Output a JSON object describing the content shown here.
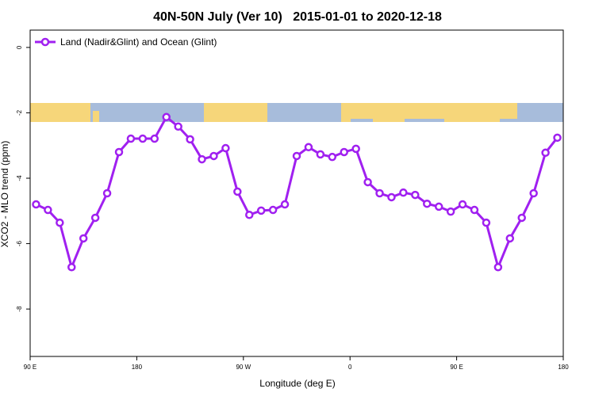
{
  "chart_data": {
    "type": "line",
    "title": "40N-50N July (Ver 10)   2015-01-01 to 2020-12-18",
    "x_label": "Longitude (deg E)",
    "y_label": "XCO2 - MLO trend (ppm)",
    "x": [
      95,
      105,
      115,
      125,
      135,
      145,
      155,
      165,
      175,
      185,
      195,
      205,
      215,
      225,
      235,
      245,
      255,
      265,
      275,
      285,
      295,
      305,
      315,
      325,
      335,
      345,
      355,
      365,
      375,
      385,
      395,
      405,
      415,
      425,
      435,
      445,
      455,
      465,
      475,
      485,
      495,
      505,
      515,
      525,
      535
    ],
    "series": [
      {
        "name": "Land (Nadir&Glint) and Ocean (Glint)",
        "color": "#a020f0",
        "values": [
          -4.8,
          -4.97,
          -5.36,
          -6.72,
          -5.84,
          -5.21,
          -4.46,
          -3.2,
          -2.79,
          -2.79,
          -2.79,
          -2.13,
          -2.42,
          -2.81,
          -3.42,
          -3.32,
          -3.08,
          -4.41,
          -5.12,
          -4.99,
          -4.97,
          -4.8,
          -3.32,
          -3.05,
          -3.27,
          -3.35,
          -3.2,
          -3.1,
          -4.12,
          -4.46,
          -4.58,
          -4.44,
          -4.51,
          -4.78,
          -4.87,
          -5.02,
          -4.8,
          -4.97,
          -5.36,
          -6.72,
          -5.84,
          -5.21,
          -4.46,
          -3.22,
          -2.76
        ]
      }
    ],
    "xlim": [
      90,
      540
    ],
    "xticks": [
      {
        "value": 90,
        "label": "90 E"
      },
      180,
      {
        "value": 270,
        "label": "90 W"
      },
      {
        "value": 360,
        "label": "0"
      },
      {
        "value": 450,
        "label": "90 E"
      },
      {
        "value": 540,
        "label": "180"
      }
    ],
    "ylim": [
      -9.45,
      0.53
    ],
    "yticks": [
      0,
      -2,
      -4,
      -6,
      -8
    ],
    "legend": "top-left"
  }
}
